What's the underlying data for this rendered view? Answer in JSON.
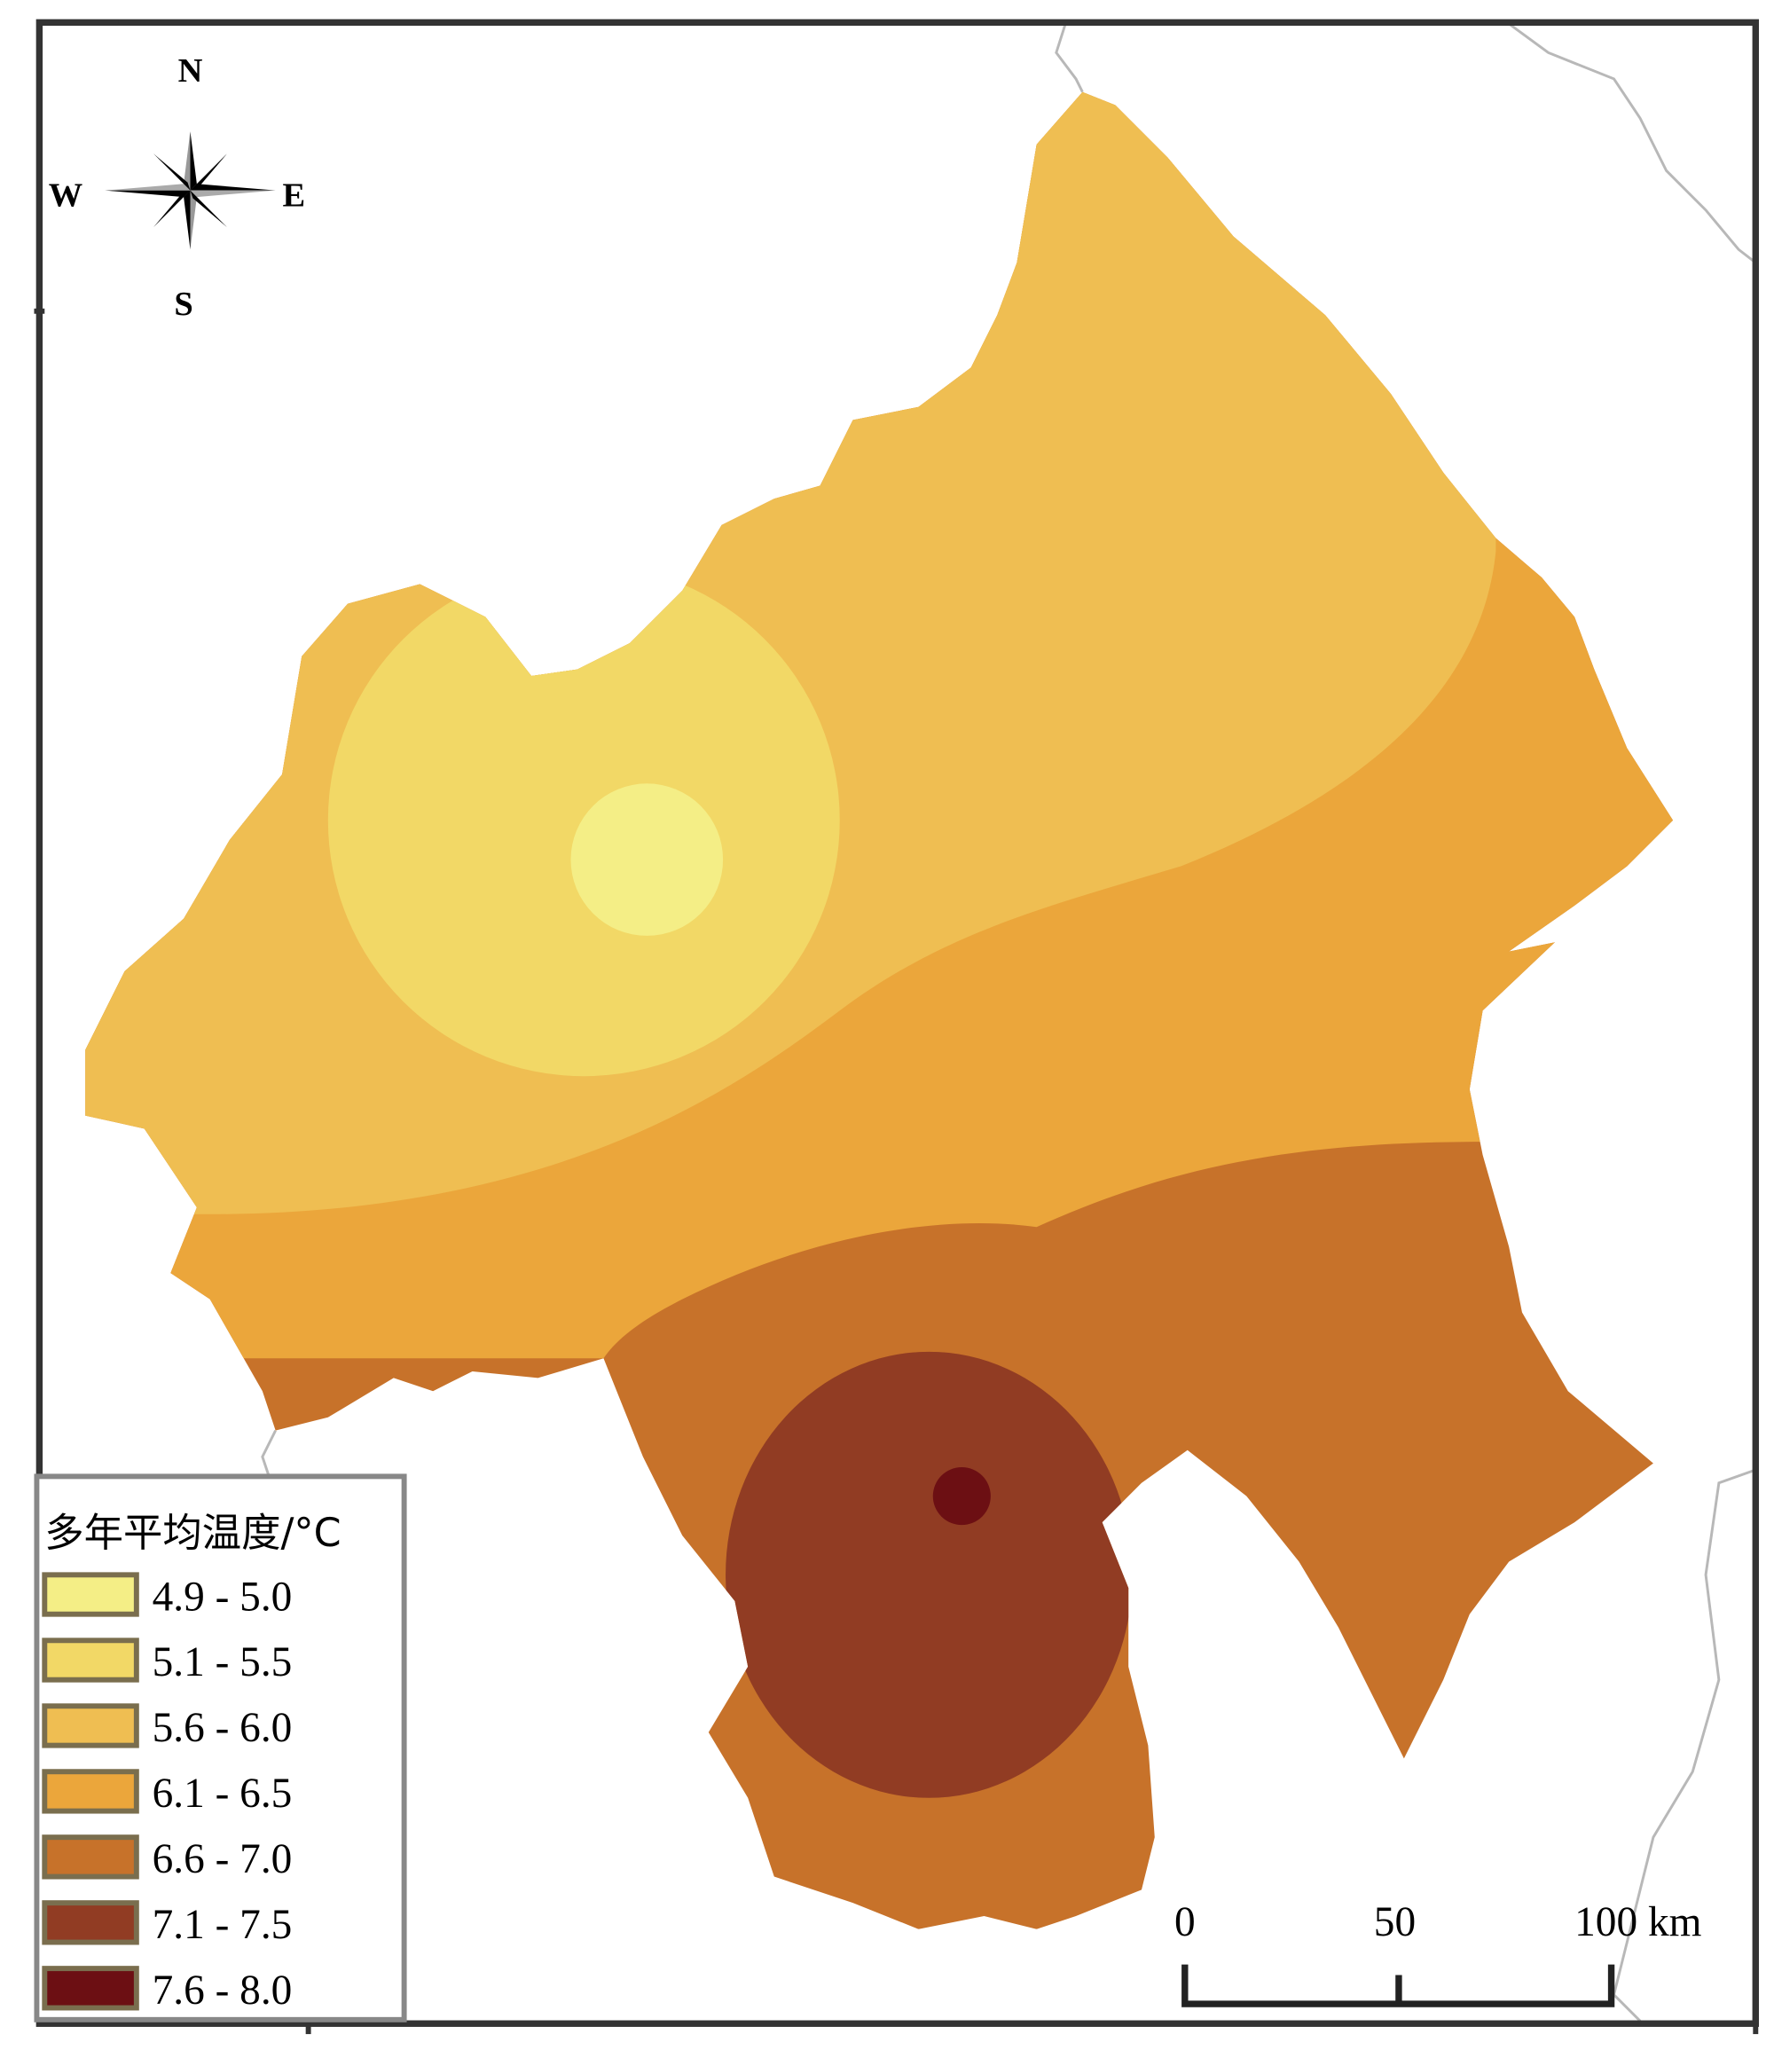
{
  "compass": {
    "north": "N",
    "south": "S",
    "east": "E",
    "west": "W"
  },
  "legend": {
    "title": "多年平均温度/°C",
    "items": [
      {
        "label": "4.9 - 5.0",
        "color": "#f4ee86"
      },
      {
        "label": "5.1 - 5.5",
        "color": "#f2d866"
      },
      {
        "label": "5.6 - 6.0",
        "color": "#efbe52"
      },
      {
        "label": "6.1 - 6.5",
        "color": "#eba63b"
      },
      {
        "label": "6.6 - 7.0",
        "color": "#c7722a"
      },
      {
        "label": "7.1 - 7.5",
        "color": "#913c23"
      },
      {
        "label": "7.6 - 8.0",
        "color": "#6c0f13"
      }
    ]
  },
  "scale_bar": {
    "labels": [
      "0",
      "50",
      "100 km"
    ]
  }
}
